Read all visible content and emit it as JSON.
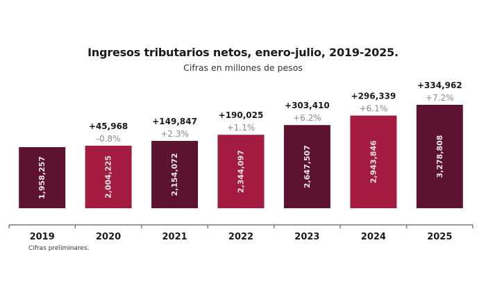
{
  "chart_data": {
    "type": "bar",
    "title": "Ingresos tributarios netos, enero-julio, 2019-2025.",
    "subtitle": "Cifras en millones de pesos",
    "note": "Cifras preliminares.",
    "xlabel": "",
    "ylabel": "",
    "grid": false,
    "categories": [
      "2019",
      "2020",
      "2021",
      "2022",
      "2023",
      "2024",
      "2025"
    ],
    "values": [
      1958257,
      2004225,
      2154072,
      2344097,
      2647507,
      2943846,
      3278808
    ],
    "value_labels": [
      "1,958,257",
      "2,004,225",
      "2,154,072",
      "2,344,097",
      "2,647,507",
      "2,943,846",
      "3,278,808"
    ],
    "difference_labels": [
      "",
      "+45,968",
      "+149,847",
      "+190,025",
      "+303,410",
      "+296,339",
      "+334,962"
    ],
    "pct_change_labels": [
      "",
      "-0.8%",
      "+2.3%",
      "+1.1%",
      "+6.2%",
      "+6.1%",
      "+7.2%"
    ],
    "bar_colors": [
      "#5c1230",
      "#a31c40",
      "#5c1230",
      "#a31c40",
      "#5c1230",
      "#a31c40",
      "#5c1230"
    ]
  }
}
